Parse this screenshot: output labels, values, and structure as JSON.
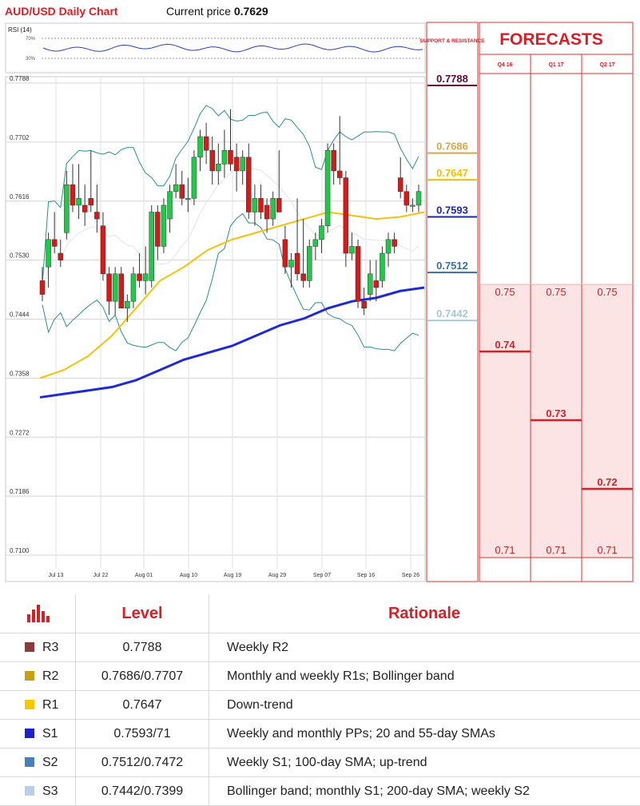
{
  "header": {
    "chart_title": "AUD/USD Daily Chart",
    "price_label": "Current price",
    "price_value": "0.7629"
  },
  "chart_data": {
    "type": "candlestick",
    "y_ticks": [
      0.7788,
      0.7702,
      0.7616,
      0.753,
      0.7444,
      0.7358,
      0.7272,
      0.7186,
      0.71
    ],
    "ylim": [
      0.71,
      0.7788
    ],
    "x_ticks": [
      "Jul 13",
      "Jul 22",
      "Aug 01",
      "Aug 10",
      "Aug 19",
      "Aug 29",
      "Sep 07",
      "Sep 16",
      "Sep 26"
    ],
    "rsi": {
      "label": "RSI (14)",
      "levels": [
        "70%",
        "30%"
      ]
    },
    "candles": [
      [
        0.75,
        0.752,
        0.747,
        0.748
      ],
      [
        0.752,
        0.757,
        0.749,
        0.756
      ],
      [
        0.756,
        0.76,
        0.754,
        0.755
      ],
      [
        0.754,
        0.756,
        0.752,
        0.753
      ],
      [
        0.757,
        0.766,
        0.756,
        0.764
      ],
      [
        0.764,
        0.767,
        0.76,
        0.761
      ],
      [
        0.761,
        0.767,
        0.759,
        0.762
      ],
      [
        0.761,
        0.764,
        0.758,
        0.76
      ],
      [
        0.762,
        0.769,
        0.76,
        0.761
      ],
      [
        0.76,
        0.764,
        0.757,
        0.759
      ],
      [
        0.758,
        0.76,
        0.75,
        0.751
      ],
      [
        0.751,
        0.752,
        0.745,
        0.747
      ],
      [
        0.747,
        0.752,
        0.745,
        0.751
      ],
      [
        0.751,
        0.752,
        0.746,
        0.746
      ],
      [
        0.746,
        0.748,
        0.744,
        0.747
      ],
      [
        0.747,
        0.752,
        0.746,
        0.751
      ],
      [
        0.751,
        0.754,
        0.749,
        0.75
      ],
      [
        0.75,
        0.755,
        0.748,
        0.751
      ],
      [
        0.75,
        0.761,
        0.749,
        0.76
      ],
      [
        0.76,
        0.761,
        0.753,
        0.755
      ],
      [
        0.755,
        0.762,
        0.754,
        0.761
      ],
      [
        0.759,
        0.764,
        0.757,
        0.763
      ],
      [
        0.763,
        0.767,
        0.762,
        0.764
      ],
      [
        0.764,
        0.766,
        0.761,
        0.762
      ],
      [
        0.762,
        0.765,
        0.76,
        0.762
      ],
      [
        0.762,
        0.769,
        0.761,
        0.768
      ],
      [
        0.768,
        0.772,
        0.766,
        0.771
      ],
      [
        0.771,
        0.773,
        0.767,
        0.769
      ],
      [
        0.769,
        0.771,
        0.764,
        0.766
      ],
      [
        0.766,
        0.77,
        0.764,
        0.767
      ],
      [
        0.767,
        0.772,
        0.765,
        0.769
      ],
      [
        0.769,
        0.775,
        0.766,
        0.767
      ],
      [
        0.768,
        0.77,
        0.763,
        0.766
      ],
      [
        0.766,
        0.769,
        0.764,
        0.768
      ],
      [
        0.768,
        0.77,
        0.759,
        0.76
      ],
      [
        0.76,
        0.764,
        0.758,
        0.762
      ],
      [
        0.762,
        0.764,
        0.759,
        0.76
      ],
      [
        0.761,
        0.762,
        0.757,
        0.759
      ],
      [
        0.759,
        0.763,
        0.758,
        0.762
      ],
      [
        0.762,
        0.769,
        0.76,
        0.76
      ],
      [
        0.756,
        0.758,
        0.751,
        0.752
      ],
      [
        0.752,
        0.754,
        0.749,
        0.753
      ],
      [
        0.754,
        0.762,
        0.75,
        0.751
      ],
      [
        0.751,
        0.759,
        0.749,
        0.75
      ],
      [
        0.75,
        0.756,
        0.749,
        0.755
      ],
      [
        0.755,
        0.757,
        0.753,
        0.756
      ],
      [
        0.756,
        0.759,
        0.754,
        0.758
      ],
      [
        0.758,
        0.77,
        0.757,
        0.769
      ],
      [
        0.769,
        0.77,
        0.764,
        0.766
      ],
      [
        0.766,
        0.774,
        0.764,
        0.765
      ],
      [
        0.765,
        0.766,
        0.752,
        0.754
      ],
      [
        0.754,
        0.757,
        0.753,
        0.755
      ],
      [
        0.755,
        0.756,
        0.746,
        0.747
      ],
      [
        0.747,
        0.749,
        0.745,
        0.746
      ],
      [
        0.748,
        0.753,
        0.747,
        0.751
      ],
      [
        0.75,
        0.753,
        0.747,
        0.749
      ],
      [
        0.75,
        0.755,
        0.749,
        0.754
      ],
      [
        0.754,
        0.757,
        0.752,
        0.756
      ],
      [
        0.756,
        0.757,
        0.754,
        0.755
      ],
      [
        0.765,
        0.768,
        0.762,
        0.763
      ],
      [
        0.763,
        0.764,
        0.76,
        0.761
      ],
      [
        0.761,
        0.762,
        0.76,
        0.761
      ],
      [
        0.761,
        0.764,
        0.76,
        0.763
      ]
    ],
    "moving_averages": {
      "sma55": [
        0.7358,
        0.737,
        0.739,
        0.742,
        0.746,
        0.75,
        0.752,
        0.7545,
        0.756,
        0.757,
        0.758,
        0.759,
        0.76,
        0.7595,
        0.759,
        0.7593,
        0.76
      ],
      "sma200": [
        0.733,
        0.7335,
        0.734,
        0.7345,
        0.7355,
        0.737,
        0.7385,
        0.7395,
        0.7405,
        0.742,
        0.7435,
        0.7445,
        0.746,
        0.747,
        0.7475,
        0.7485,
        0.749
      ]
    },
    "support_resistance": {
      "label": "SUPPORT & RESISTANCE",
      "levels": [
        {
          "value": "0.7788",
          "color": "#5c0a35"
        },
        {
          "value": "0.7686",
          "color": "#d6a84a"
        },
        {
          "value": "0.7647",
          "color": "#f0c000"
        },
        {
          "value": "0.7593",
          "color": "#1a22c8"
        },
        {
          "value": "0.7512",
          "color": "#3a6e9a"
        },
        {
          "value": "0.7442",
          "color": "#a9c7d6"
        }
      ]
    },
    "forecasts": {
      "title": "FORECASTS",
      "columns": [
        {
          "label": "Q4 16",
          "high": "0.75",
          "low": "0.71",
          "target": "0.74"
        },
        {
          "label": "Q1 17",
          "high": "0.75",
          "low": "0.71",
          "target": "0.73"
        },
        {
          "label": "Q2 17",
          "high": "0.75",
          "low": "0.71",
          "target": "0.72"
        }
      ]
    }
  },
  "levels_table": {
    "headers": {
      "level": "Level",
      "rationale": "Rationale"
    },
    "rows": [
      {
        "name": "R3",
        "color": "#8b3a3a",
        "level": "0.7788",
        "rationale": "Weekly R2"
      },
      {
        "name": "R2",
        "color": "#c8a015",
        "level": "0.7686/0.7707",
        "rationale": "Monthly and weekly R1s; Bollinger band"
      },
      {
        "name": "R1",
        "color": "#f5c800",
        "level": "0.7647",
        "rationale": "Down-trend"
      },
      {
        "name": "S1",
        "color": "#1a22c8",
        "level": "0.7593/71",
        "rationale": "Weekly and monthly PPs; 20 and 55-day SMAs"
      },
      {
        "name": "S2",
        "color": "#4a7fb8",
        "level": "0.7512/0.7472",
        "rationale": "Weekly S1; 100-day SMA; up-trend"
      },
      {
        "name": "S3",
        "color": "#b8cfe8",
        "level": "0.7442/0.7399",
        "rationale": "Bollinger band; monthly S1; 200-day SMA; weekly S2"
      }
    ]
  }
}
